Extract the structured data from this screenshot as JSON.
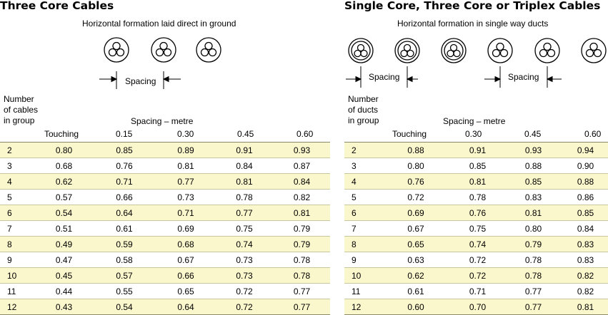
{
  "left": {
    "title": "Three Core Cables",
    "subtitle": "Horizontal formation laid direct in ground",
    "spacing_label": "Spacing",
    "row_header_lines": [
      "Number",
      "of cables",
      "in group"
    ],
    "spacing_title": "Spacing – metre",
    "columns": [
      "Touching",
      "0.15",
      "0.30",
      "0.45",
      "0.60"
    ],
    "rows": [
      {
        "n": "2",
        "v": [
          "0.80",
          "0.85",
          "0.89",
          "0.91",
          "0.93"
        ]
      },
      {
        "n": "3",
        "v": [
          "0.68",
          "0.76",
          "0.81",
          "0.84",
          "0.87"
        ]
      },
      {
        "n": "4",
        "v": [
          "0.62",
          "0.71",
          "0.77",
          "0.81",
          "0.84"
        ]
      },
      {
        "n": "5",
        "v": [
          "0.57",
          "0.66",
          "0.73",
          "0.78",
          "0.82"
        ]
      },
      {
        "n": "6",
        "v": [
          "0.54",
          "0.64",
          "0.71",
          "0.77",
          "0.81"
        ]
      },
      {
        "n": "7",
        "v": [
          "0.51",
          "0.61",
          "0.69",
          "0.75",
          "0.79"
        ]
      },
      {
        "n": "8",
        "v": [
          "0.49",
          "0.59",
          "0.68",
          "0.74",
          "0.79"
        ]
      },
      {
        "n": "9",
        "v": [
          "0.47",
          "0.58",
          "0.67",
          "0.73",
          "0.78"
        ]
      },
      {
        "n": "10",
        "v": [
          "0.45",
          "0.57",
          "0.66",
          "0.73",
          "0.78"
        ]
      },
      {
        "n": "11",
        "v": [
          "0.44",
          "0.55",
          "0.65",
          "0.72",
          "0.77"
        ]
      },
      {
        "n": "12",
        "v": [
          "0.43",
          "0.54",
          "0.64",
          "0.72",
          "0.77"
        ]
      }
    ]
  },
  "right": {
    "title": "Single Core, Three Core or Triplex Cables",
    "subtitle": "Horizontal formation in single way ducts",
    "spacing_label_1": "Spacing",
    "spacing_label_2": "Spacing",
    "row_header_lines": [
      "Number",
      "of ducts",
      "in group"
    ],
    "spacing_title": "Spacing – metre",
    "columns": [
      "Touching",
      "0.30",
      "0.45",
      "0.60"
    ],
    "rows": [
      {
        "n": "2",
        "v": [
          "0.88",
          "0.91",
          "0.93",
          "0.94"
        ]
      },
      {
        "n": "3",
        "v": [
          "0.80",
          "0.85",
          "0.88",
          "0.90"
        ]
      },
      {
        "n": "4",
        "v": [
          "0.76",
          "0.81",
          "0.85",
          "0.88"
        ]
      },
      {
        "n": "5",
        "v": [
          "0.72",
          "0.78",
          "0.83",
          "0.86"
        ]
      },
      {
        "n": "6",
        "v": [
          "0.69",
          "0.76",
          "0.81",
          "0.85"
        ]
      },
      {
        "n": "7",
        "v": [
          "0.67",
          "0.75",
          "0.80",
          "0.84"
        ]
      },
      {
        "n": "8",
        "v": [
          "0.65",
          "0.74",
          "0.79",
          "0.83"
        ]
      },
      {
        "n": "9",
        "v": [
          "0.63",
          "0.72",
          "0.78",
          "0.83"
        ]
      },
      {
        "n": "10",
        "v": [
          "0.62",
          "0.72",
          "0.78",
          "0.82"
        ]
      },
      {
        "n": "11",
        "v": [
          "0.61",
          "0.71",
          "0.77",
          "0.82"
        ]
      },
      {
        "n": "12",
        "v": [
          "0.60",
          "0.70",
          "0.77",
          "0.81"
        ]
      }
    ]
  },
  "colors": {
    "highlight_row": "#fbf7cc",
    "rule": "#8a8a6a"
  }
}
